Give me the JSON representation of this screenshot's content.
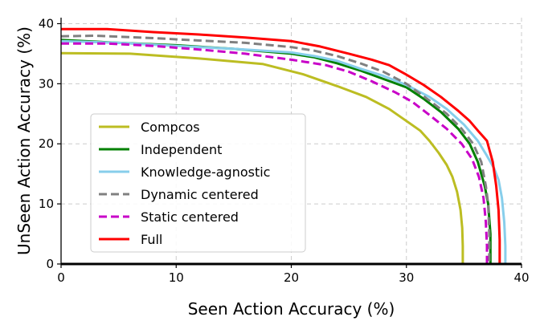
{
  "chart_data": {
    "type": "line",
    "xlabel": "Seen Action Accuracy (%)",
    "ylabel": "UnSeen Action Accuracy (%)",
    "xlim": [
      0,
      40
    ],
    "ylim": [
      0,
      41
    ],
    "xticks": [
      0,
      10,
      20,
      30,
      40
    ],
    "yticks": [
      0,
      10,
      20,
      30,
      40
    ],
    "grid": true,
    "legend_position": "lower-left",
    "baseline_y": 0,
    "series": [
      {
        "name": "Compcos",
        "color": "#bcbd22",
        "dash": "solid",
        "points": [
          [
            0,
            35.1
          ],
          [
            6,
            35.0
          ],
          [
            12,
            34.2
          ],
          [
            17.5,
            33.3
          ],
          [
            21,
            31.6
          ],
          [
            24,
            29.6
          ],
          [
            26.5,
            27.8
          ],
          [
            28.5,
            25.8
          ],
          [
            30,
            23.8
          ],
          [
            31.2,
            22.2
          ],
          [
            32,
            20.5
          ],
          [
            32.8,
            18.5
          ],
          [
            33.5,
            16.5
          ],
          [
            34,
            14.5
          ],
          [
            34.4,
            12
          ],
          [
            34.7,
            9
          ],
          [
            34.85,
            6
          ],
          [
            34.9,
            3
          ],
          [
            34.9,
            0
          ]
        ]
      },
      {
        "name": "Independent",
        "color": "#008000",
        "dash": "solid",
        "points": [
          [
            0,
            37.3
          ],
          [
            5,
            36.8
          ],
          [
            10,
            36.4
          ],
          [
            15,
            35.8
          ],
          [
            20,
            35.0
          ],
          [
            22,
            34.4
          ],
          [
            24,
            33.4
          ],
          [
            26,
            32.2
          ],
          [
            28,
            30.8
          ],
          [
            30,
            29.4
          ],
          [
            31.5,
            27.5
          ],
          [
            33,
            25.3
          ],
          [
            34.5,
            22.5
          ],
          [
            35.5,
            20
          ],
          [
            36.2,
            17
          ],
          [
            36.8,
            13
          ],
          [
            37.1,
            10
          ],
          [
            37.3,
            5
          ],
          [
            37.3,
            0
          ]
        ]
      },
      {
        "name": "Knowledge-agnostic",
        "color": "#87ceeb",
        "dash": "solid",
        "points": [
          [
            0,
            37.1
          ],
          [
            5,
            36.8
          ],
          [
            10,
            36.3
          ],
          [
            15,
            35.8
          ],
          [
            20,
            35.2
          ],
          [
            22,
            34.6
          ],
          [
            24,
            33.8
          ],
          [
            26,
            32.5
          ],
          [
            28,
            31.3
          ],
          [
            30,
            29.8
          ],
          [
            32,
            27.8
          ],
          [
            33.5,
            25.8
          ],
          [
            35,
            23.2
          ],
          [
            36.2,
            20.5
          ],
          [
            37,
            18
          ],
          [
            37.6,
            16
          ],
          [
            38,
            14
          ],
          [
            38.3,
            11
          ],
          [
            38.5,
            7
          ],
          [
            38.6,
            3
          ],
          [
            38.6,
            0
          ]
        ]
      },
      {
        "name": "Dynamic centered",
        "color": "#808080",
        "dash": "dashed",
        "points": [
          [
            0,
            37.9
          ],
          [
            3,
            38.0
          ],
          [
            8,
            37.6
          ],
          [
            12,
            37.2
          ],
          [
            16,
            36.8
          ],
          [
            20,
            36.1
          ],
          [
            22,
            35.5
          ],
          [
            24,
            34.6
          ],
          [
            26,
            33.4
          ],
          [
            28,
            32.0
          ],
          [
            30,
            30.0
          ],
          [
            32,
            27.2
          ],
          [
            33.5,
            25.0
          ],
          [
            34.8,
            22.5
          ],
          [
            35.8,
            20
          ],
          [
            36.5,
            17
          ],
          [
            36.9,
            13
          ],
          [
            37.1,
            10
          ],
          [
            37.2,
            5
          ],
          [
            37.2,
            0
          ]
        ]
      },
      {
        "name": "Static centered",
        "color": "#c800c8",
        "dash": "dashed",
        "points": [
          [
            0,
            36.7
          ],
          [
            4,
            36.7
          ],
          [
            8,
            36.3
          ],
          [
            12,
            35.7
          ],
          [
            16,
            35.0
          ],
          [
            20,
            34.0
          ],
          [
            23,
            33.1
          ],
          [
            25,
            32.0
          ],
          [
            27,
            30.4
          ],
          [
            29,
            28.6
          ],
          [
            30.5,
            27.0
          ],
          [
            32,
            24.8
          ],
          [
            33.5,
            22.5
          ],
          [
            34.8,
            20
          ],
          [
            35.7,
            17.5
          ],
          [
            36.3,
            14.5
          ],
          [
            36.7,
            11
          ],
          [
            36.9,
            7
          ],
          [
            37,
            3
          ],
          [
            37,
            0
          ]
        ]
      },
      {
        "name": "Full",
        "color": "#ff0000",
        "dash": "solid",
        "points": [
          [
            0,
            39.1
          ],
          [
            4,
            39.1
          ],
          [
            8,
            38.6
          ],
          [
            12,
            38.2
          ],
          [
            16,
            37.7
          ],
          [
            20,
            37.1
          ],
          [
            22.5,
            36.2
          ],
          [
            25,
            35.0
          ],
          [
            27,
            34.0
          ],
          [
            28.5,
            33.1
          ],
          [
            30,
            31.5
          ],
          [
            31.5,
            29.8
          ],
          [
            33,
            27.8
          ],
          [
            34.5,
            25.5
          ],
          [
            35.5,
            23.8
          ],
          [
            36.3,
            22
          ],
          [
            37,
            20.5
          ],
          [
            37.5,
            17
          ],
          [
            37.8,
            13
          ],
          [
            38,
            9
          ],
          [
            38.1,
            4
          ],
          [
            38.1,
            0
          ]
        ]
      }
    ]
  }
}
